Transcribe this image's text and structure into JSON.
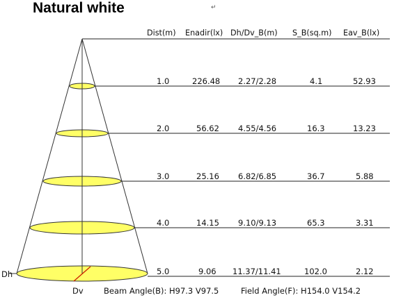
{
  "title": "Natural white",
  "return_mark": "↵",
  "headers": [
    "Dist(m)",
    "Enadir(lx)",
    "Dh/Dv_B(m)",
    "S_B(sq.m)",
    "Eav_B(lx)"
  ],
  "rows": [
    {
      "dist": "1.0",
      "enadir": "226.48",
      "dhdv": "2.27/2.28",
      "area": "4.1",
      "eav": "52.93"
    },
    {
      "dist": "2.0",
      "enadir": "56.62",
      "dhdv": "4.55/4.56",
      "area": "16.3",
      "eav": "13.23"
    },
    {
      "dist": "3.0",
      "enadir": "25.16",
      "dhdv": "6.82/6.85",
      "area": "36.7",
      "eav": "5.88"
    },
    {
      "dist": "4.0",
      "enadir": "14.15",
      "dhdv": "9.10/9.13",
      "area": "65.3",
      "eav": "3.31"
    },
    {
      "dist": "5.0",
      "enadir": "9.06",
      "dhdv": "11.37/11.41",
      "area": "102.0",
      "eav": "2.12"
    }
  ],
  "dh_label": "Dh",
  "dv_label": "Dv",
  "beam_angle": "Beam Angle(B): H97.3 V97.5",
  "field_angle": "Field Angle(F): H154.0 V154.2",
  "colors": {
    "ellipse_fill": "#ffff66",
    "dv_line": "#cc2200",
    "line": "#222222"
  }
}
